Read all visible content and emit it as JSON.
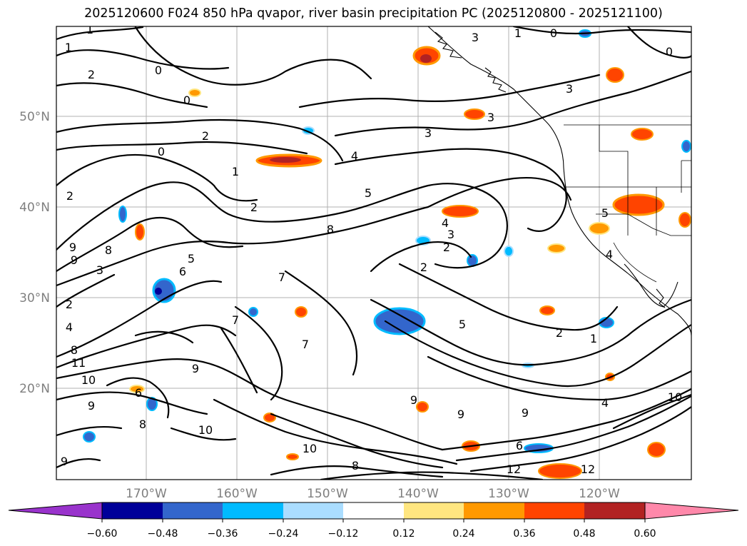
{
  "title": "2025120600 F024 850 hPa qvapor, river basin precipitation PC (2025120800 - 2025121100)",
  "lat_labels": [
    "50°N",
    "40°N",
    "30°N",
    "20°N"
  ],
  "lon_labels": [
    "170°W",
    "160°W",
    "150°W",
    "140°W",
    "130°W",
    "120°W"
  ],
  "colorbar": {
    "tick_labels": [
      "−0.60",
      "−0.48",
      "−0.36",
      "−0.24",
      "−0.12",
      "0.12",
      "0.24",
      "0.36",
      "0.48",
      "0.60"
    ],
    "colors": [
      "#9933cc",
      "#000099",
      "#3366cc",
      "#00bbff",
      "#aaddff",
      "#ffffff",
      "#ffe680",
      "#ff9900",
      "#ff4400",
      "#b22222",
      "#ff88aa"
    ]
  },
  "contour_labels": [
    "1",
    "1",
    "0",
    "2",
    "0",
    "0",
    "2",
    "3",
    "1",
    "2",
    "4",
    "3",
    "5",
    "8",
    "2",
    "4",
    "3",
    "2",
    "2",
    "5",
    "5",
    "6",
    "7",
    "9",
    "8",
    "3",
    "9",
    "2",
    "4",
    "11",
    "8",
    "10",
    "9",
    "9",
    "7",
    "7",
    "10",
    "10",
    "8",
    "6",
    "12",
    "12",
    "9",
    "9",
    "4",
    "10",
    "0",
    "1",
    "3",
    "3",
    "4",
    "5",
    "1",
    "2",
    "0",
    "9",
    "8",
    "6",
    "9"
  ]
}
